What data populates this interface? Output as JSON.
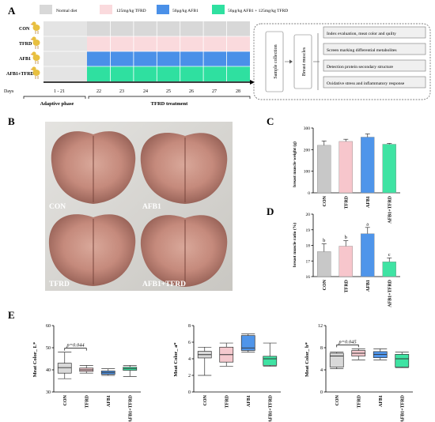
{
  "colors": {
    "normal": "#d8d8d8",
    "tfrd": "#fadadd",
    "afb1": "#4a90e8",
    "combo": "#2fe0a0",
    "con_bar": "#c8c8c8",
    "tfrd_bar": "#f7c6cc",
    "afb1_bar": "#4f95ea",
    "combo_bar": "#3fe3a3"
  },
  "panelA": {
    "label": "A",
    "legend": [
      "Normal diet",
      "125mg/kg TFRD",
      "50μg/kg AFB1",
      "50μg/kg AFB1 + 125mg/kg TFRD"
    ],
    "groups": [
      "CON",
      "TFRD",
      "AFB1",
      "AFB1+TFRD"
    ],
    "days_label": "Days",
    "days": [
      "1 - 21",
      "22",
      "23",
      "24",
      "25",
      "26",
      "27",
      "28"
    ],
    "phase1": "Adaptive phase",
    "phase2": "TFRD treatment",
    "flow_sample": "Sample collection",
    "flow_breast": "Breast muscles",
    "flow_items": [
      "Index evaluation, meat color and quilty",
      "Screen marking differential metabolites",
      "Detection protein secondary structure",
      "Oxidative stress and inflammatory response"
    ]
  },
  "panelB": {
    "label": "B",
    "photo_labels": [
      "CON",
      "AFB1",
      "TFRD",
      "AFB1+TFRD"
    ]
  },
  "panelC": {
    "label": "C",
    "chart_data": {
      "type": "bar",
      "categories": [
        "CON",
        "TFRD",
        "AFB1",
        "AFB1+TFRD"
      ],
      "values": [
        220,
        238,
        258,
        225
      ],
      "errors": [
        20,
        10,
        15,
        4
      ],
      "ylabel": "breast muscle weight (g)",
      "ylim": [
        0,
        300
      ],
      "yticks": [
        "0",
        "100",
        "200",
        "300"
      ]
    }
  },
  "panelD": {
    "label": "D",
    "chart_data": {
      "type": "bar",
      "categories": [
        "CON",
        "TFRD",
        "AFB1",
        "AFB1+TFRD"
      ],
      "values": [
        17.6,
        17.95,
        18.75,
        16.95
      ],
      "errors": [
        0.5,
        0.35,
        0.4,
        0.25
      ],
      "letters": [
        "b",
        "b",
        "a",
        "c"
      ],
      "ylabel": "breast muscle ratio (%)",
      "ylim": [
        16,
        20
      ],
      "yticks": [
        "16",
        "17",
        "18",
        "19",
        "20"
      ]
    }
  },
  "panelE": {
    "label": "E",
    "charts": [
      {
        "type": "box",
        "ylabel": "Meat Color_ L*",
        "ylim": [
          30,
          60
        ],
        "yticks": [
          "30",
          "40",
          "50",
          "60"
        ],
        "categories": [
          "CON",
          "TFRD",
          "AFB1",
          "AFB1+TFRD"
        ],
        "boxes": [
          {
            "min": 36,
            "q1": 38.5,
            "median": 41,
            "q3": 43,
            "max": 48
          },
          {
            "min": 38.5,
            "q1": 39.3,
            "median": 40,
            "q3": 40.8,
            "max": 42
          },
          {
            "min": 37.5,
            "q1": 38,
            "median": 38.8,
            "q3": 39.5,
            "max": 40.5
          },
          {
            "min": 37,
            "q1": 39.8,
            "median": 40.5,
            "q3": 41.2,
            "max": 42
          }
        ],
        "pvalue": "p=0.044",
        "bracket": [
          0,
          1
        ]
      },
      {
        "type": "box",
        "ylabel": "Meat Color_ a*",
        "ylim": [
          0,
          8
        ],
        "yticks": [
          "0",
          "2",
          "4",
          "6",
          "8"
        ],
        "categories": [
          "CON",
          "TFRD",
          "AFB1",
          "AFB1+TFRD"
        ],
        "boxes": [
          {
            "min": 2,
            "q1": 4.1,
            "median": 4.5,
            "q3": 4.9,
            "max": 5.4
          },
          {
            "min": 3.1,
            "q1": 3.6,
            "median": 4.5,
            "q3": 5.4,
            "max": 5.9
          },
          {
            "min": 4.8,
            "q1": 5,
            "median": 5.3,
            "q3": 6.8,
            "max": 7
          },
          {
            "min": 3.1,
            "q1": 3.2,
            "median": 4,
            "q3": 4.3,
            "max": 5.9
          }
        ]
      },
      {
        "type": "box",
        "ylabel": "Meat Color_ b*",
        "ylim": [
          0,
          12
        ],
        "yticks": [
          "0",
          "4",
          "8",
          "12"
        ],
        "categories": [
          "CON",
          "TFRD",
          "AFB1",
          "AFB1+TFRD"
        ],
        "boxes": [
          {
            "min": 4.2,
            "q1": 4.5,
            "median": 6.5,
            "q3": 7,
            "max": 7.2
          },
          {
            "min": 5.8,
            "q1": 6.5,
            "median": 7,
            "q3": 7.5,
            "max": 7.8
          },
          {
            "min": 5.8,
            "q1": 6.2,
            "median": 6.8,
            "q3": 7.3,
            "max": 7.8
          },
          {
            "min": 4.4,
            "q1": 4.5,
            "median": 6,
            "q3": 6.8,
            "max": 7.2
          }
        ],
        "pvalue": "p=0.045",
        "bracket": [
          0,
          1
        ]
      }
    ]
  }
}
